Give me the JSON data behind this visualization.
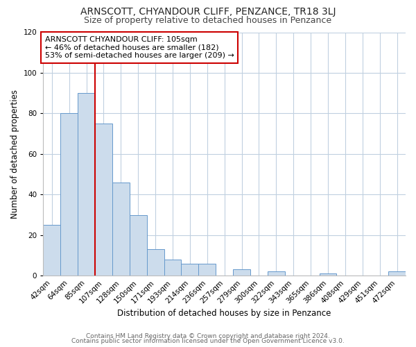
{
  "title": "ARNSCOTT, CHYANDOUR CLIFF, PENZANCE, TR18 3LJ",
  "subtitle": "Size of property relative to detached houses in Penzance",
  "xlabel": "Distribution of detached houses by size in Penzance",
  "ylabel": "Number of detached properties",
  "bar_labels": [
    "42sqm",
    "64sqm",
    "85sqm",
    "107sqm",
    "128sqm",
    "150sqm",
    "171sqm",
    "193sqm",
    "214sqm",
    "236sqm",
    "257sqm",
    "279sqm",
    "300sqm",
    "322sqm",
    "343sqm",
    "365sqm",
    "386sqm",
    "408sqm",
    "429sqm",
    "451sqm",
    "472sqm"
  ],
  "bar_values": [
    25,
    80,
    90,
    75,
    46,
    30,
    13,
    8,
    6,
    6,
    0,
    3,
    0,
    2,
    0,
    0,
    1,
    0,
    0,
    0,
    2
  ],
  "bar_color": "#ccdcec",
  "bar_edgecolor": "#6699cc",
  "vline_x": 2.5,
  "vline_color": "#cc0000",
  "annotation_text": "ARNSCOTT CHYANDOUR CLIFF: 105sqm\n← 46% of detached houses are smaller (182)\n53% of semi-detached houses are larger (209) →",
  "annotation_box_edgecolor": "#cc0000",
  "annotation_box_facecolor": "#ffffff",
  "ylim": [
    0,
    120
  ],
  "yticks": [
    0,
    20,
    40,
    60,
    80,
    100,
    120
  ],
  "footer_line1": "Contains HM Land Registry data © Crown copyright and database right 2024.",
  "footer_line2": "Contains public sector information licensed under the Open Government Licence v3.0.",
  "background_color": "#ffffff",
  "grid_color": "#c0d0e0",
  "title_fontsize": 10,
  "subtitle_fontsize": 9,
  "axis_label_fontsize": 8.5,
  "tick_fontsize": 7.5,
  "annotation_fontsize": 8,
  "footer_fontsize": 6.5
}
